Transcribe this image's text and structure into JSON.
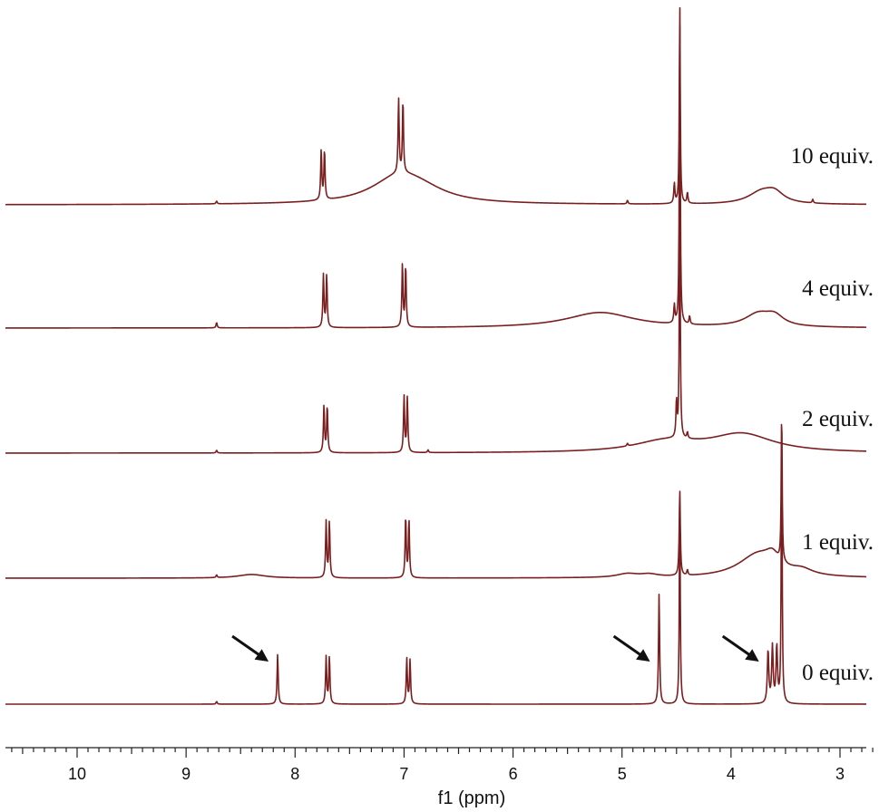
{
  "chart_data": {
    "type": "line",
    "xlabel": "f1 (ppm)",
    "xlim": [
      10.6,
      2.45
    ],
    "x_ticks": [
      10,
      9,
      8,
      7,
      6,
      5,
      4,
      3
    ],
    "grid": false,
    "series": [
      {
        "name": "0 equiv.",
        "peaks": [
          {
            "x": 8.72,
            "h": 3,
            "w": 0.006
          },
          {
            "x": 8.16,
            "h": 55,
            "w": 0.006
          },
          {
            "x": 7.715,
            "h": 52,
            "w": 0.006
          },
          {
            "x": 7.685,
            "h": 52,
            "w": 0.006
          },
          {
            "x": 6.975,
            "h": 50,
            "w": 0.006
          },
          {
            "x": 6.945,
            "h": 48,
            "w": 0.006
          },
          {
            "x": 4.66,
            "h": 122,
            "w": 0.006
          },
          {
            "x": 4.47,
            "h": 230,
            "w": 0.005
          },
          {
            "x": 3.66,
            "h": 58,
            "w": 0.008
          },
          {
            "x": 3.62,
            "h": 62,
            "w": 0.008
          },
          {
            "x": 3.58,
            "h": 62,
            "w": 0.008
          },
          {
            "x": 3.535,
            "h": 310,
            "w": 0.005
          }
        ]
      },
      {
        "name": "1 equiv.",
        "peaks": [
          {
            "x": 8.72,
            "h": 3,
            "w": 0.006
          },
          {
            "x": 8.4,
            "h": 4,
            "w": 0.15
          },
          {
            "x": 7.715,
            "h": 62,
            "w": 0.006
          },
          {
            "x": 7.685,
            "h": 62,
            "w": 0.006
          },
          {
            "x": 6.985,
            "h": 68,
            "w": 0.006
          },
          {
            "x": 6.955,
            "h": 64,
            "w": 0.006
          },
          {
            "x": 4.95,
            "h": 4,
            "w": 0.12
          },
          {
            "x": 4.75,
            "h": 3,
            "w": 0.1
          },
          {
            "x": 4.47,
            "h": 95,
            "w": 0.006
          },
          {
            "x": 4.4,
            "h": 6,
            "w": 0.006
          },
          {
            "x": 3.75,
            "h": 26,
            "w": 0.22
          },
          {
            "x": 3.62,
            "h": 12,
            "w": 0.07
          },
          {
            "x": 3.35,
            "h": 6,
            "w": 0.12
          },
          {
            "x": 3.535,
            "h": 170,
            "w": 0.005
          }
        ]
      },
      {
        "name": "2 equiv.",
        "peaks": [
          {
            "x": 8.72,
            "h": 3,
            "w": 0.006
          },
          {
            "x": 7.735,
            "h": 52,
            "w": 0.006
          },
          {
            "x": 7.705,
            "h": 52,
            "w": 0.006
          },
          {
            "x": 7.0,
            "h": 62,
            "w": 0.006
          },
          {
            "x": 6.97,
            "h": 60,
            "w": 0.006
          },
          {
            "x": 6.78,
            "h": 3,
            "w": 0.006
          },
          {
            "x": 4.95,
            "h": 3,
            "w": 0.006
          },
          {
            "x": 4.6,
            "h": 12,
            "w": 0.35
          },
          {
            "x": 4.5,
            "h": 40,
            "w": 0.006
          },
          {
            "x": 4.47,
            "h": 280,
            "w": 0.005
          },
          {
            "x": 4.4,
            "h": 7,
            "w": 0.006
          },
          {
            "x": 3.9,
            "h": 20,
            "w": 0.35
          }
        ]
      },
      {
        "name": "4 equiv.",
        "peaks": [
          {
            "x": 8.72,
            "h": 6,
            "w": 0.006
          },
          {
            "x": 7.74,
            "h": 58,
            "w": 0.006
          },
          {
            "x": 7.71,
            "h": 58,
            "w": 0.006
          },
          {
            "x": 7.015,
            "h": 70,
            "w": 0.006
          },
          {
            "x": 6.985,
            "h": 68,
            "w": 0.006
          },
          {
            "x": 5.2,
            "h": 17,
            "w": 0.38
          },
          {
            "x": 4.52,
            "h": 20,
            "w": 0.006
          },
          {
            "x": 4.47,
            "h": 340,
            "w": 0.005
          },
          {
            "x": 4.38,
            "h": 9,
            "w": 0.006
          },
          {
            "x": 3.75,
            "h": 14,
            "w": 0.15
          },
          {
            "x": 3.6,
            "h": 10,
            "w": 0.1
          }
        ]
      },
      {
        "name": "10 equiv.",
        "peaks": [
          {
            "x": 8.72,
            "h": 3,
            "w": 0.006
          },
          {
            "x": 7.76,
            "h": 55,
            "w": 0.006
          },
          {
            "x": 7.73,
            "h": 55,
            "w": 0.006
          },
          {
            "x": 7.05,
            "h": 82,
            "w": 0.006
          },
          {
            "x": 7.01,
            "h": 80,
            "w": 0.006
          },
          {
            "x": 7.05,
            "h": 28,
            "w": 0.3
          },
          {
            "x": 6.85,
            "h": 10,
            "w": 0.3
          },
          {
            "x": 4.95,
            "h": 4,
            "w": 0.006
          },
          {
            "x": 4.52,
            "h": 22,
            "w": 0.006
          },
          {
            "x": 4.47,
            "h": 223,
            "w": 0.005
          },
          {
            "x": 4.4,
            "h": 12,
            "w": 0.006
          },
          {
            "x": 3.72,
            "h": 13,
            "w": 0.15
          },
          {
            "x": 3.6,
            "h": 10,
            "w": 0.1
          },
          {
            "x": 3.25,
            "h": 4,
            "w": 0.006
          }
        ]
      }
    ],
    "arrows": [
      {
        "target_x": 8.16
      },
      {
        "target_x": 4.66
      },
      {
        "target_x": 3.66
      }
    ]
  }
}
